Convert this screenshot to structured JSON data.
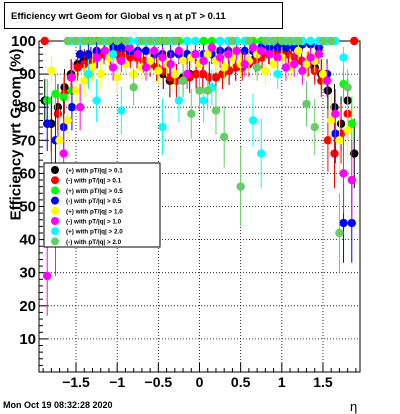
{
  "title": "Efficiency wrt Geom for Global vs   η at pT > 0.11",
  "footer": "Mon Oct 19 08:32:28 2020",
  "chart_data": {
    "type": "scatter",
    "xlabel": "η",
    "ylabel": "Efficiency wrt Geom (%)",
    "xlim": [
      -1.95,
      1.95
    ],
    "ylim": [
      0,
      100
    ],
    "grid": true,
    "legend_position": "middle-left",
    "x_ticks": [
      -1.5,
      -1,
      -0.5,
      0,
      0.5,
      1,
      1.5
    ],
    "x_tick_labels": [
      "−1.5",
      "−1",
      "−0.5",
      "0",
      "0.5",
      "1",
      "1.5"
    ],
    "y_ticks": [
      10,
      20,
      30,
      40,
      50,
      60,
      70,
      80,
      90,
      100
    ],
    "series": [
      {
        "name": "(+) with pT/|q| > 0.1",
        "color": "#000000",
        "x": [
          -1.88,
          -1.8,
          -1.72,
          -1.64,
          -1.56,
          -1.48,
          -1.4,
          -1.32,
          -1.24,
          -1.16,
          -1.08,
          -1.0,
          -0.92,
          -0.84,
          -0.76,
          -0.68,
          -0.6,
          -0.52,
          -0.44,
          -0.36,
          -0.28,
          -0.2,
          -0.12,
          -0.04,
          0.04,
          0.12,
          0.2,
          0.28,
          0.36,
          0.44,
          0.52,
          0.6,
          0.68,
          0.76,
          0.84,
          0.92,
          1.0,
          1.08,
          1.16,
          1.24,
          1.32,
          1.4,
          1.48,
          1.56,
          1.64,
          1.72,
          1.8,
          1.88
        ],
        "y": [
          82,
          75,
          80,
          86,
          90,
          93,
          94,
          95,
          95,
          96,
          96,
          97,
          96,
          96,
          95,
          94,
          93,
          92,
          90,
          88,
          88,
          89,
          90,
          90,
          90,
          89,
          89,
          90,
          91,
          92,
          93,
          94,
          95,
          95,
          96,
          96,
          97,
          96,
          95,
          94,
          93,
          92,
          90,
          85,
          80,
          75,
          82,
          66
        ]
      },
      {
        "name": "(-) with pT/|q| > 0.1",
        "color": "#ff0000",
        "x": [
          -1.88,
          -1.8,
          -1.72,
          -1.64,
          -1.56,
          -1.48,
          -1.4,
          -1.32,
          -1.24,
          -1.16,
          -1.08,
          -1.0,
          -0.92,
          -0.84,
          -0.76,
          -0.68,
          -0.6,
          -0.52,
          -0.44,
          -0.36,
          -0.28,
          -0.2,
          -0.12,
          -0.04,
          0.04,
          0.12,
          0.2,
          0.28,
          0.36,
          0.44,
          0.52,
          0.6,
          0.68,
          0.76,
          0.84,
          0.92,
          1.0,
          1.08,
          1.16,
          1.24,
          1.32,
          1.4,
          1.48,
          1.56,
          1.64,
          1.72,
          1.8,
          1.88
        ],
        "y": [
          100,
          62,
          78,
          84,
          89,
          92,
          93,
          94,
          95,
          96,
          96,
          96,
          96,
          95,
          95,
          94,
          93,
          92,
          91,
          89,
          88,
          88,
          89,
          90,
          90,
          89,
          89,
          90,
          91,
          92,
          92,
          93,
          94,
          95,
          96,
          96,
          96,
          96,
          95,
          94,
          93,
          91,
          88,
          70,
          66,
          72,
          78,
          100
        ]
      },
      {
        "name": "(+) with pT/|q| > 0.5",
        "color": "#00ff00",
        "x": [
          -1.85,
          -1.75,
          -1.65,
          -1.55,
          -1.45,
          -1.35,
          -1.25,
          -1.15,
          -1.05,
          -0.95,
          -0.85,
          -0.75,
          -0.65,
          -0.55,
          -0.45,
          -0.35,
          -0.25,
          -0.15,
          -0.05,
          0.05,
          0.15,
          0.25,
          0.35,
          0.45,
          0.55,
          0.65,
          0.75,
          0.85,
          0.95,
          1.05,
          1.15,
          1.25,
          1.35,
          1.45,
          1.55,
          1.65,
          1.75,
          1.85
        ],
        "y": [
          82,
          84,
          83,
          85,
          100,
          100,
          100,
          100,
          100,
          100,
          100,
          100,
          100,
          100,
          100,
          100,
          100,
          100,
          100,
          100,
          100,
          100,
          100,
          100,
          100,
          100,
          100,
          100,
          100,
          100,
          100,
          100,
          100,
          100,
          100,
          100,
          87,
          75
        ]
      },
      {
        "name": "(-) with pT/|q| > 0.5",
        "color": "#0000ff",
        "x": [
          -1.85,
          -1.75,
          -1.65,
          -1.55,
          -1.45,
          -1.35,
          -1.25,
          -1.15,
          -1.05,
          -0.95,
          -0.85,
          -0.75,
          -0.65,
          -0.55,
          -0.45,
          -0.35,
          -0.25,
          -0.15,
          -0.05,
          0.05,
          0.15,
          0.25,
          0.35,
          0.45,
          0.55,
          0.65,
          0.75,
          0.85,
          0.95,
          1.05,
          1.15,
          1.25,
          1.35,
          1.45,
          1.55,
          1.65,
          1.75,
          1.85
        ],
        "y": [
          75,
          70,
          74,
          80,
          96,
          96,
          97,
          97,
          98,
          98,
          97,
          97,
          97,
          96,
          96,
          96,
          96,
          96,
          96,
          96,
          96,
          97,
          97,
          97,
          97,
          97,
          98,
          98,
          98,
          98,
          98,
          99,
          99,
          98,
          90,
          72,
          45,
          45
        ]
      },
      {
        "name": "(+) with pT/|q| > 1.0",
        "color": "#ffff00",
        "x": [
          -1.8,
          -1.7,
          -1.6,
          -1.5,
          -1.4,
          -1.3,
          -1.2,
          -1.1,
          -1.0,
          -0.9,
          -0.8,
          -0.7,
          -0.6,
          -0.5,
          -0.4,
          -0.3,
          -0.2,
          -0.1,
          0.0,
          0.1,
          0.2,
          0.3,
          0.4,
          0.5,
          0.6,
          0.7,
          0.8,
          0.9,
          1.0,
          1.1,
          1.2,
          1.3,
          1.4,
          1.5,
          1.6,
          1.7,
          1.8
        ],
        "y": [
          91,
          70,
          76,
          85,
          88,
          92,
          90,
          95,
          89,
          93,
          90,
          92,
          94,
          91,
          93,
          90,
          94,
          95,
          93,
          96,
          94,
          92,
          95,
          93,
          94,
          96,
          91,
          93,
          95,
          92,
          97,
          93,
          94,
          90,
          76,
          70,
          73
        ]
      },
      {
        "name": "(-) with pT/|q| > 1.0",
        "color": "#ff00ff",
        "x": [
          -1.85,
          -1.75,
          -1.65,
          -1.55,
          -1.45,
          -1.35,
          -1.25,
          -1.15,
          -1.05,
          -0.95,
          -0.85,
          -0.75,
          -0.65,
          -0.55,
          -0.45,
          -0.35,
          -0.25,
          -0.15,
          -0.05,
          0.05,
          0.15,
          0.25,
          0.35,
          0.45,
          0.55,
          0.65,
          0.75,
          0.85,
          0.95,
          1.05,
          1.15,
          1.25,
          1.35,
          1.45,
          1.55,
          1.65,
          1.75,
          1.85
        ],
        "y": [
          29,
          41,
          66,
          89,
          80,
          90,
          95,
          97,
          92,
          94,
          98,
          96,
          92,
          97,
          95,
          93,
          97,
          90,
          96,
          94,
          98,
          95,
          96,
          97,
          93,
          98,
          97,
          96,
          95,
          92,
          93,
          91,
          95,
          96,
          88,
          78,
          60,
          58
        ]
      },
      {
        "name": "(+) with pT/|q| > 2.0",
        "color": "#00ffff",
        "x": [
          -1.55,
          -1.45,
          -1.35,
          -1.25,
          -1.15,
          -1.05,
          -0.95,
          -0.85,
          -0.75,
          -0.65,
          -0.55,
          -0.45,
          -0.35,
          -0.25,
          -0.15,
          -0.05,
          0.05,
          0.15,
          0.25,
          0.35,
          0.45,
          0.55,
          0.65,
          0.75,
          0.85,
          0.95,
          1.05,
          1.15,
          1.25,
          1.35,
          1.45,
          1.55,
          1.65,
          1.75
        ],
        "y": [
          100,
          100,
          90,
          82,
          100,
          96,
          79,
          100,
          100,
          100,
          100,
          74,
          100,
          82,
          100,
          100,
          82,
          86,
          100,
          100,
          100,
          100,
          76,
          66,
          100,
          90,
          100,
          100,
          100,
          100,
          100,
          100,
          100,
          95
        ]
      },
      {
        "name": "(-) with pT/|q| > 2.0",
        "color": "#66cc66",
        "x": [
          -1.6,
          -1.5,
          -1.4,
          -1.3,
          -1.2,
          -1.1,
          -1.0,
          -0.9,
          -0.8,
          -0.7,
          -0.6,
          -0.5,
          -0.4,
          -0.3,
          -0.2,
          -0.1,
          0.0,
          0.1,
          0.2,
          0.3,
          0.4,
          0.5,
          0.6,
          0.7,
          0.8,
          0.9,
          1.0,
          1.1,
          1.2,
          1.3,
          1.4,
          1.5,
          1.6,
          1.7,
          1.8
        ],
        "y": [
          100,
          100,
          100,
          100,
          100,
          100,
          100,
          100,
          86,
          100,
          100,
          100,
          100,
          100,
          88,
          78,
          85,
          85,
          79,
          71,
          100,
          56,
          100,
          92,
          100,
          100,
          100,
          100,
          100,
          81,
          74,
          100,
          100,
          42,
          86
        ]
      }
    ]
  }
}
